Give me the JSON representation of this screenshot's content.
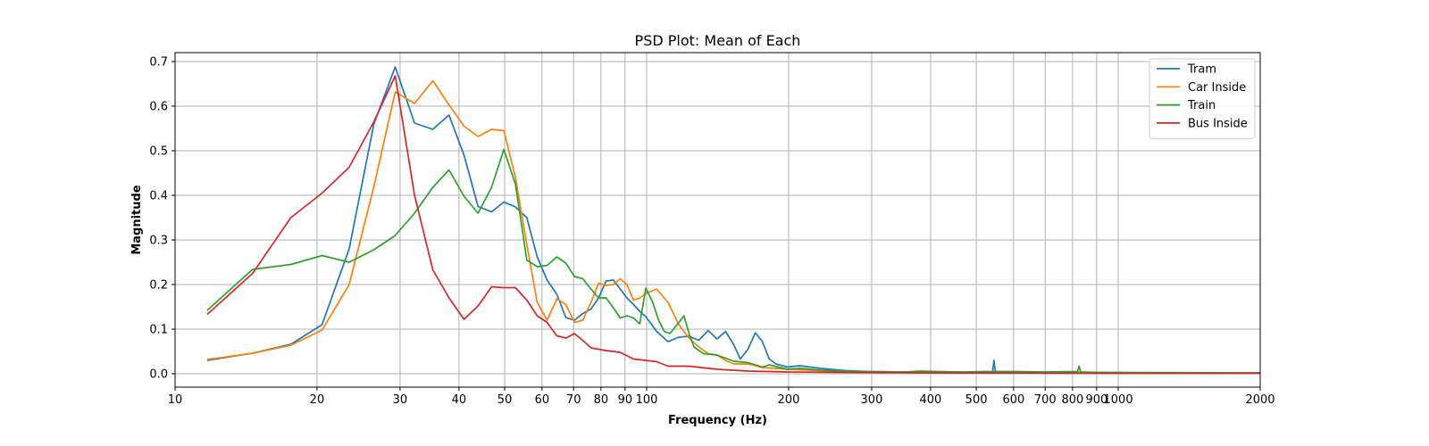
{
  "chart_data": {
    "type": "line",
    "title": "PSD Plot: Mean of Each",
    "xlabel": "Frequency (Hz)",
    "ylabel": "Magnitude",
    "xscale": "log",
    "xlim": [
      10,
      2000
    ],
    "ylim": [
      -0.03,
      0.72
    ],
    "grid": true,
    "legend_position": "top-right",
    "x_ticks": [
      10,
      20,
      30,
      40,
      50,
      60,
      70,
      80,
      90,
      100,
      200,
      300,
      400,
      500,
      600,
      700,
      800,
      900,
      1000,
      2000
    ],
    "x_tick_labels": [
      "10",
      "20",
      "30",
      "40",
      "50",
      "60",
      "70",
      "80",
      "90",
      "100",
      "200",
      "300",
      "400",
      "500",
      "600",
      "700",
      "800",
      "900",
      "1000",
      "2000"
    ],
    "y_ticks": [
      0.0,
      0.1,
      0.2,
      0.3,
      0.4,
      0.5,
      0.6,
      0.7
    ],
    "y_tick_labels": [
      "0.0",
      "0.1",
      "0.2",
      "0.3",
      "0.4",
      "0.5",
      "0.6",
      "0.7"
    ],
    "series": [
      {
        "name": "Tram",
        "color": "#1f77b4",
        "points": [
          [
            11.7,
            0.03
          ],
          [
            14.6,
            0.046
          ],
          [
            17.6,
            0.066
          ],
          [
            20.5,
            0.11
          ],
          [
            23.4,
            0.28
          ],
          [
            26.4,
            0.56
          ],
          [
            29.3,
            0.688
          ],
          [
            32.2,
            0.562
          ],
          [
            35.2,
            0.548
          ],
          [
            38.1,
            0.58
          ],
          [
            41.0,
            0.49
          ],
          [
            43.9,
            0.375
          ],
          [
            46.9,
            0.363
          ],
          [
            49.8,
            0.385
          ],
          [
            52.7,
            0.374
          ],
          [
            55.7,
            0.35
          ],
          [
            58.6,
            0.262
          ],
          [
            61.5,
            0.21
          ],
          [
            64.5,
            0.178
          ],
          [
            67.4,
            0.126
          ],
          [
            70.3,
            0.12
          ],
          [
            73.2,
            0.135
          ],
          [
            76.2,
            0.145
          ],
          [
            79.1,
            0.17
          ],
          [
            82.0,
            0.208
          ],
          [
            85.0,
            0.21
          ],
          [
            87.9,
            0.19
          ],
          [
            90.8,
            0.17
          ],
          [
            93.8,
            0.155
          ],
          [
            96.7,
            0.14
          ],
          [
            99.6,
            0.128
          ],
          [
            105,
            0.095
          ],
          [
            111,
            0.072
          ],
          [
            117,
            0.082
          ],
          [
            123,
            0.084
          ],
          [
            129,
            0.075
          ],
          [
            135,
            0.097
          ],
          [
            141,
            0.078
          ],
          [
            147,
            0.095
          ],
          [
            153,
            0.065
          ],
          [
            158,
            0.033
          ],
          [
            164,
            0.055
          ],
          [
            170,
            0.092
          ],
          [
            176,
            0.072
          ],
          [
            182,
            0.033
          ],
          [
            188,
            0.022
          ],
          [
            199,
            0.015
          ],
          [
            211,
            0.018
          ],
          [
            234,
            0.012
          ],
          [
            264,
            0.007
          ],
          [
            293,
            0.005
          ],
          [
            352,
            0.004
          ],
          [
            410,
            0.003
          ],
          [
            469,
            0.003
          ],
          [
            541,
            0.003
          ],
          [
            545,
            0.03
          ],
          [
            549,
            0.003
          ],
          [
            600,
            0.004
          ],
          [
            700,
            0.003
          ],
          [
            850,
            0.003
          ],
          [
            1000,
            0.002
          ],
          [
            1500,
            0.002
          ],
          [
            2000,
            0.002
          ]
        ]
      },
      {
        "name": "Car Inside",
        "color": "#ff7f0e",
        "points": [
          [
            11.7,
            0.032
          ],
          [
            14.6,
            0.046
          ],
          [
            17.6,
            0.064
          ],
          [
            20.5,
            0.098
          ],
          [
            23.4,
            0.2
          ],
          [
            26.4,
            0.42
          ],
          [
            29.3,
            0.632
          ],
          [
            32.2,
            0.606
          ],
          [
            35.2,
            0.657
          ],
          [
            38.1,
            0.603
          ],
          [
            41.0,
            0.555
          ],
          [
            43.9,
            0.532
          ],
          [
            46.9,
            0.548
          ],
          [
            49.8,
            0.545
          ],
          [
            52.7,
            0.44
          ],
          [
            55.7,
            0.29
          ],
          [
            58.6,
            0.16
          ],
          [
            61.5,
            0.12
          ],
          [
            64.5,
            0.168
          ],
          [
            67.4,
            0.155
          ],
          [
            70.3,
            0.115
          ],
          [
            73.2,
            0.12
          ],
          [
            76.2,
            0.16
          ],
          [
            79.1,
            0.203
          ],
          [
            82.0,
            0.198
          ],
          [
            85.0,
            0.2
          ],
          [
            87.9,
            0.213
          ],
          [
            90.8,
            0.2
          ],
          [
            93.8,
            0.165
          ],
          [
            96.7,
            0.17
          ],
          [
            99.6,
            0.18
          ],
          [
            105,
            0.19
          ],
          [
            111,
            0.16
          ],
          [
            117,
            0.11
          ],
          [
            123,
            0.08
          ],
          [
            129,
            0.06
          ],
          [
            135,
            0.045
          ],
          [
            141,
            0.042
          ],
          [
            147,
            0.03
          ],
          [
            153,
            0.022
          ],
          [
            164,
            0.022
          ],
          [
            176,
            0.014
          ],
          [
            199,
            0.01
          ],
          [
            234,
            0.007
          ],
          [
            293,
            0.004
          ],
          [
            410,
            0.003
          ],
          [
            600,
            0.003
          ],
          [
            1000,
            0.002
          ],
          [
            2000,
            0.002
          ]
        ]
      },
      {
        "name": "Train",
        "color": "#2ca02c",
        "points": [
          [
            11.7,
            0.142
          ],
          [
            14.6,
            0.234
          ],
          [
            17.6,
            0.245
          ],
          [
            20.5,
            0.265
          ],
          [
            23.4,
            0.25
          ],
          [
            26.4,
            0.278
          ],
          [
            29.3,
            0.31
          ],
          [
            32.2,
            0.36
          ],
          [
            35.2,
            0.418
          ],
          [
            38.1,
            0.457
          ],
          [
            41.0,
            0.398
          ],
          [
            43.9,
            0.36
          ],
          [
            46.9,
            0.418
          ],
          [
            49.8,
            0.503
          ],
          [
            52.7,
            0.425
          ],
          [
            55.7,
            0.255
          ],
          [
            58.6,
            0.24
          ],
          [
            61.5,
            0.243
          ],
          [
            64.5,
            0.262
          ],
          [
            67.4,
            0.248
          ],
          [
            70.3,
            0.218
          ],
          [
            73.2,
            0.213
          ],
          [
            76.2,
            0.19
          ],
          [
            79.1,
            0.17
          ],
          [
            82.0,
            0.17
          ],
          [
            85.0,
            0.148
          ],
          [
            87.9,
            0.125
          ],
          [
            90.8,
            0.13
          ],
          [
            93.8,
            0.125
          ],
          [
            96.7,
            0.112
          ],
          [
            99.6,
            0.192
          ],
          [
            103,
            0.16
          ],
          [
            106,
            0.12
          ],
          [
            109,
            0.095
          ],
          [
            112,
            0.09
          ],
          [
            117,
            0.115
          ],
          [
            120,
            0.13
          ],
          [
            123,
            0.09
          ],
          [
            126,
            0.06
          ],
          [
            132,
            0.045
          ],
          [
            141,
            0.042
          ],
          [
            147,
            0.035
          ],
          [
            153,
            0.028
          ],
          [
            164,
            0.025
          ],
          [
            176,
            0.015
          ],
          [
            182,
            0.02
          ],
          [
            199,
            0.01
          ],
          [
            211,
            0.012
          ],
          [
            234,
            0.008
          ],
          [
            264,
            0.006
          ],
          [
            293,
            0.005
          ],
          [
            352,
            0.004
          ],
          [
            381,
            0.006
          ],
          [
            410,
            0.005
          ],
          [
            469,
            0.004
          ],
          [
            527,
            0.005
          ],
          [
            600,
            0.005
          ],
          [
            700,
            0.004
          ],
          [
            820,
            0.005
          ],
          [
            826,
            0.017
          ],
          [
            832,
            0.004
          ],
          [
            900,
            0.003
          ],
          [
            1000,
            0.003
          ],
          [
            2000,
            0.002
          ]
        ]
      },
      {
        "name": "Bus Inside",
        "color": "#d62728",
        "points": [
          [
            11.7,
            0.133
          ],
          [
            14.6,
            0.225
          ],
          [
            17.6,
            0.35
          ],
          [
            20.5,
            0.405
          ],
          [
            23.4,
            0.463
          ],
          [
            26.4,
            0.565
          ],
          [
            29.3,
            0.668
          ],
          [
            32.2,
            0.4
          ],
          [
            35.2,
            0.233
          ],
          [
            38.1,
            0.17
          ],
          [
            41.0,
            0.122
          ],
          [
            43.9,
            0.152
          ],
          [
            46.9,
            0.195
          ],
          [
            49.8,
            0.193
          ],
          [
            52.7,
            0.193
          ],
          [
            55.7,
            0.165
          ],
          [
            58.6,
            0.13
          ],
          [
            61.5,
            0.115
          ],
          [
            64.5,
            0.085
          ],
          [
            67.4,
            0.08
          ],
          [
            70.3,
            0.09
          ],
          [
            73.2,
            0.075
          ],
          [
            76.2,
            0.058
          ],
          [
            82.0,
            0.052
          ],
          [
            87.9,
            0.048
          ],
          [
            93.8,
            0.033
          ],
          [
            99.6,
            0.03
          ],
          [
            105,
            0.027
          ],
          [
            111,
            0.017
          ],
          [
            123,
            0.017
          ],
          [
            141,
            0.01
          ],
          [
            164,
            0.006
          ],
          [
            199,
            0.004
          ],
          [
            264,
            0.003
          ],
          [
            410,
            0.002
          ],
          [
            1000,
            0.001
          ],
          [
            2000,
            0.001
          ]
        ]
      }
    ]
  }
}
